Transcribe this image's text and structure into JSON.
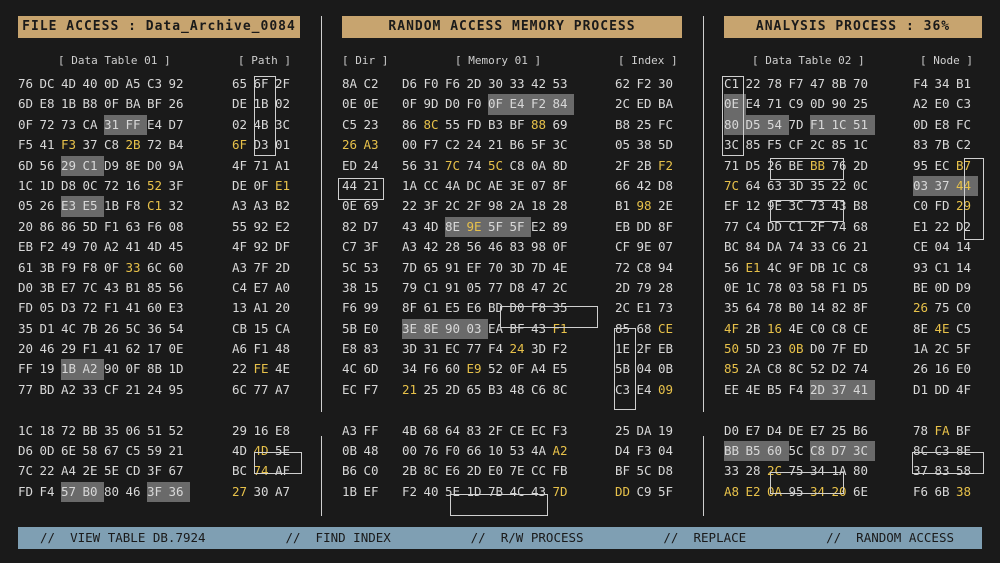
{
  "titles": {
    "file_access": "FILE ACCESS : Data_Archive_0084",
    "ram": "RANDOM ACCESS MEMORY PROCESS",
    "analysis": "ANALYSIS PROCESS : 36%"
  },
  "labels": {
    "data_table_01": "[ Data Table 01 ]",
    "path": "[ Path ]",
    "dir": "[ Dir ]",
    "memory_01": "[ Memory 01 ]",
    "index": "[ Index ]",
    "data_table_02": "[ Data Table 02 ]",
    "node": "[ Node ]"
  },
  "bottom_menu": [
    "//  VIEW TABLE DB.7924",
    "//  FIND INDEX",
    "//  R/W PROCESS",
    "//  REPLACE",
    "//  RANDOM ACCESS"
  ],
  "panel1_rows": [
    "76 DC 4D 40 0D A5 C3 92",
    "6D E8 1B B8 0F BA BF 26",
    "0F 72 73 CA 31 FF E4 D7",
    "F5 41 F3 37 C8 2B 72 B4",
    "6D 56 29 C1 D9 8E D0 9A",
    "1C 1D D8 0C 72 16 52 3F",
    "05 26 E3 E5 1B F8 C1 32",
    "20 86 86 5D F1 63 F6 08",
    "EB F2 49 70 A2 41 4D 45",
    "61 3B F9 F8 0F 33 6C 60",
    "D0 3B E7 7C 43 B1 85 56",
    "FD 05 D3 72 F1 41 60 E3",
    "35 D1 4C 7B 26 5C 36 54",
    "20 46 29 F1 41 62 17 0E",
    "FF 19 1B A2 90 0F 8B 1D",
    "77 BD A2 33 CF 21 24 95",
    "",
    "1C 18 72 BB 35 06 51 52",
    "D6 0D 6E 58 67 C5 59 21",
    "7C 22 A4 2E 5E CD 3F 67",
    "FD F4 57 B0 80 46 3F 36"
  ],
  "panel1_path": [
    "65 6F 2F",
    "DE 1B 02",
    "02 4B 3C",
    "6F D3 01",
    "4F 71 A1",
    "DE 0F E1",
    "A3 A3 B2",
    "55 92 E2",
    "4F 92 DF",
    "A3 7F 2D",
    "C4 E7 A0",
    "13 A1 20",
    "CB 15 CA",
    "A6 F1 48",
    "22 FE 4E",
    "6C 77 A7",
    "",
    "29 16 E8",
    "4D 4D 5E",
    "BC 74 AF",
    "27 30 A7"
  ],
  "panel2_dir": [
    "8A C2",
    "0E 0E",
    "C5 23",
    "26 A3",
    "ED 24",
    "44 21",
    "0E 69",
    "82 D7",
    "C7 3F",
    "5C 53",
    "38 15",
    "F6 99",
    "5B E0",
    "E8 83",
    "4C 6D",
    "EC F7",
    "",
    "A3 FF",
    "0B 48",
    "B6 C0",
    "1B EF"
  ],
  "panel2_mem": [
    "D6 F0 F6 2D 30 33 42 53",
    "0F 9D D0 F0 0F E4 F2 84",
    "86 8C 55 FD B3 BF 88 69",
    "00 F7 C2 24 21 B6 5F 3C",
    "56 31 7C 74 5C C8 0A 8D",
    "1A CC 4A DC AE 3E 07 8F",
    "22 3F 2C 2F 98 2A 18 28",
    "43 4D 8E 9E 5F 5F E2 89",
    "A3 42 28 56 46 83 98 0F",
    "7D 65 91 EF 70 3D 7D 4E",
    "79 C1 91 05 77 D8 47 2C",
    "8F 61 E5 E6 BD D0 F8 35",
    "3E 8E 90 03 EA BF 43 F1",
    "3D 31 EC 77 F4 24 3D F2",
    "34 F6 60 E9 52 0F A4 E5",
    "21 25 2D 65 B3 48 C6 8C",
    "",
    "4B 68 64 83 2F CE EC F3",
    "00 76 F0 66 10 53 4A A2",
    "2B 8C E6 2D E0 7E CC FB",
    "F2 40 5E 1D 7B 4C 43 7D"
  ],
  "panel2_index": [
    "62 F2 30",
    "2C ED BA",
    "B8 25 FC",
    "05 38 5D",
    "2F 2B F2",
    "66 42 D8",
    "B1 98 2E",
    "EB DD 8F",
    "CF 9E 07",
    "72 C8 94",
    "2D 79 28",
    "2C E1 73",
    "85 68 CE",
    "1E 2F EB",
    "5B 04 0B",
    "C3 E4 09",
    "",
    "25 DA 19",
    "D4 F3 04",
    "BF 5C D8",
    "DD C9 5F"
  ],
  "panel3_rows": [
    "C1 22 78 F7 47 8B 70",
    "0E E4 71 C9 0D 90 25",
    "80 D5 54 7D F1 1C 51",
    "3C 85 F5 CF 2C 85 1C",
    "71 D5 26 BE BB 76 2D",
    "7C 64 63 3D 35 22 0C",
    "EF 12 9E 3C 73 43 B8",
    "77 C4 DD C1 2F 74 68",
    "BC 84 DA 74 33 C6 21",
    "56 E1 4C 9F DB 1C C8",
    "0E 1C 78 03 58 F1 D5",
    "35 64 78 B0 14 82 8F",
    "4F 2B 16 4E C0 C8 CE",
    "50 5D 23 0B D0 7F ED",
    "85 2A C8 8C 52 D2 74",
    "EE 4E B5 F4 2D 37 41",
    "",
    "D0 E7 D4 DE E7 25 B6",
    "BB B5 60 5C C8 D7 3C",
    "33 28 2C 75 34 1A 80",
    "A8 E2 0A 95 34 20 6E"
  ],
  "panel3_node": [
    "F4 34 B1",
    "A2 E0 C3",
    "0D E8 FC",
    "83 7B C2",
    "95 EC B7",
    "03 37 44",
    "C0 FD 29",
    "E1 22 D2",
    "CE 04 14",
    "93 C1 14",
    "BE 0D D9",
    "26 75 C0",
    "8E 4E C5",
    "1A 2C 5F",
    "26 16 E0",
    "D1 DD 4F",
    "",
    "78 FA BF",
    "8C C3 8E",
    "37 83 58",
    "F6 6B 38"
  ]
}
